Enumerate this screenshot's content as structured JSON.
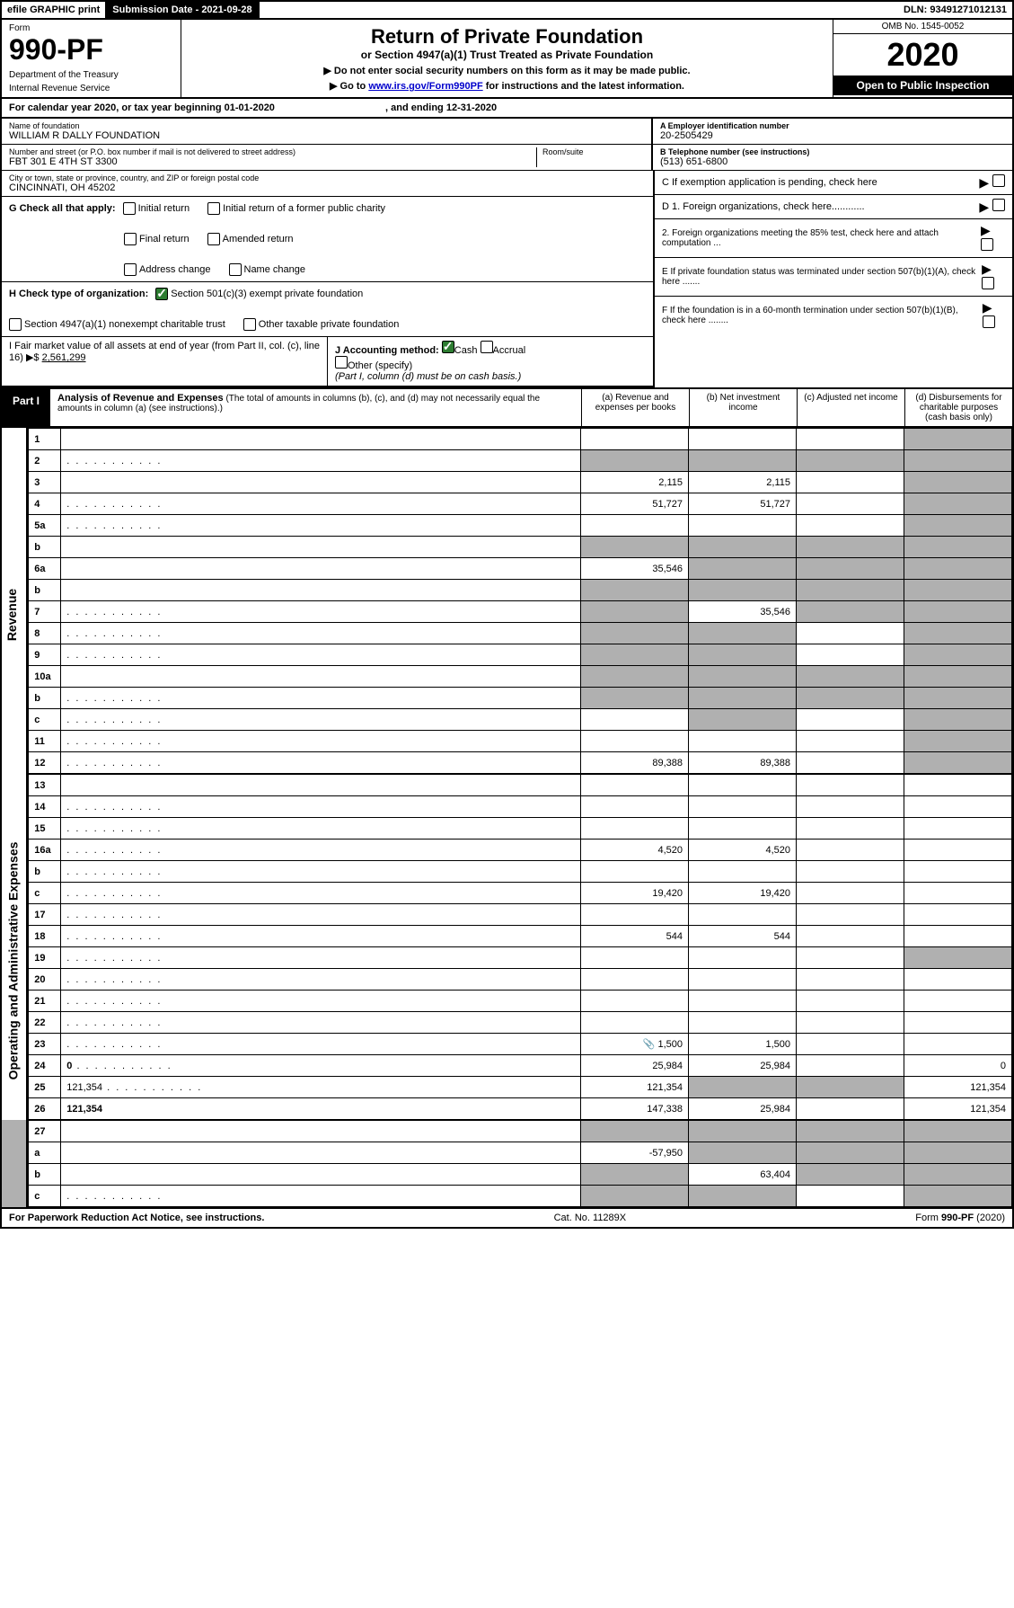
{
  "topbar": {
    "efile": "efile GRAPHIC print",
    "subdate_label": "Submission Date - 2021-09-28",
    "dln": "DLN: 93491271012131"
  },
  "header": {
    "form_word": "Form",
    "form_num": "990-PF",
    "dept": "Department of the Treasury",
    "irs": "Internal Revenue Service",
    "title": "Return of Private Foundation",
    "subtitle": "or Section 4947(a)(1) Trust Treated as Private Foundation",
    "note1": "▶ Do not enter social security numbers on this form as it may be made public.",
    "note2_pre": "▶ Go to ",
    "note2_link": "www.irs.gov/Form990PF",
    "note2_post": " for instructions and the latest information.",
    "omb": "OMB No. 1545-0052",
    "year": "2020",
    "open": "Open to Public Inspection"
  },
  "calendar": {
    "text_pre": "For calendar year 2020, or tax year beginning ",
    "begin": "01-01-2020",
    "mid": " , and ending ",
    "end": "12-31-2020"
  },
  "name_block": {
    "label": "Name of foundation",
    "value": "WILLIAM R DALLY FOUNDATION"
  },
  "ein_block": {
    "label": "A Employer identification number",
    "value": "20-2505429"
  },
  "addr_block": {
    "label": "Number and street (or P.O. box number if mail is not delivered to street address)",
    "room_label": "Room/suite",
    "value": "FBT 301 E 4TH ST 3300"
  },
  "phone_block": {
    "label": "B Telephone number (see instructions)",
    "value": "(513) 651-6800"
  },
  "city_block": {
    "label": "City or town, state or province, country, and ZIP or foreign postal code",
    "value": "CINCINNATI, OH  45202"
  },
  "c_block": "C If exemption application is pending, check here",
  "g_block": {
    "label": "G Check all that apply:",
    "opts": [
      "Initial return",
      "Initial return of a former public charity",
      "Final return",
      "Amended return",
      "Address change",
      "Name change"
    ]
  },
  "d_block": {
    "d1": "D 1. Foreign organizations, check here............",
    "d2": "2. Foreign organizations meeting the 85% test, check here and attach computation ..."
  },
  "h_block": {
    "label": "H Check type of organization:",
    "opt1": "Section 501(c)(3) exempt private foundation",
    "opt2": "Section 4947(a)(1) nonexempt charitable trust",
    "opt3": "Other taxable private foundation"
  },
  "e_block": "E If private foundation status was terminated under section 507(b)(1)(A), check here .......",
  "i_block": {
    "label": "I Fair market value of all assets at end of year (from Part II, col. (c), line 16) ▶$ ",
    "value": "2,561,299"
  },
  "j_block": {
    "label": "J Accounting method:",
    "cash": "Cash",
    "accrual": "Accrual",
    "other": "Other (specify)",
    "note": "(Part I, column (d) must be on cash basis.)"
  },
  "f_block": "F If the foundation is in a 60-month termination under section 507(b)(1)(B), check here ........",
  "part1": {
    "label": "Part I",
    "title": "Analysis of Revenue and Expenses",
    "note": "(The total of amounts in columns (b), (c), and (d) may not necessarily equal the amounts in column (a) (see instructions).)",
    "cols": {
      "a": "(a)   Revenue and expenses per books",
      "b": "(b)  Net investment income",
      "c": "(c)  Adjusted net income",
      "d": "(d)  Disbursements for charitable purposes (cash basis only)"
    }
  },
  "side_labels": {
    "revenue": "Revenue",
    "expenses": "Operating and Administrative Expenses"
  },
  "rows": [
    {
      "n": "1",
      "d": "",
      "a": "",
      "b": "",
      "c": "",
      "gray_d": true
    },
    {
      "n": "2",
      "d": "",
      "dotted": true,
      "a": "",
      "b": "",
      "c": "",
      "gray_a": true,
      "gray_b": true,
      "gray_c": true,
      "gray_d": true
    },
    {
      "n": "3",
      "d": "",
      "a": "2,115",
      "b": "2,115",
      "c": "",
      "gray_d": true
    },
    {
      "n": "4",
      "d": "",
      "dotted": true,
      "a": "51,727",
      "b": "51,727",
      "c": "",
      "gray_d": true
    },
    {
      "n": "5a",
      "d": "",
      "dotted": true,
      "a": "",
      "b": "",
      "c": "",
      "gray_d": true
    },
    {
      "n": "b",
      "d": "",
      "a": "",
      "b": "",
      "c": "",
      "gray_a": true,
      "gray_b": true,
      "gray_c": true,
      "gray_d": true
    },
    {
      "n": "6a",
      "d": "",
      "a": "35,546",
      "b": "",
      "c": "",
      "gray_b": true,
      "gray_c": true,
      "gray_d": true
    },
    {
      "n": "b",
      "d": "",
      "a": "",
      "b": "",
      "c": "",
      "gray_a": true,
      "gray_b": true,
      "gray_c": true,
      "gray_d": true
    },
    {
      "n": "7",
      "d": "",
      "dotted": true,
      "a": "",
      "b": "35,546",
      "c": "",
      "gray_a": true,
      "gray_c": true,
      "gray_d": true
    },
    {
      "n": "8",
      "d": "",
      "dotted": true,
      "a": "",
      "b": "",
      "c": "",
      "gray_a": true,
      "gray_b": true,
      "gray_d": true
    },
    {
      "n": "9",
      "d": "",
      "dotted": true,
      "a": "",
      "b": "",
      "c": "",
      "gray_a": true,
      "gray_b": true,
      "gray_d": true
    },
    {
      "n": "10a",
      "d": "",
      "a": "",
      "b": "",
      "c": "",
      "gray_a": true,
      "gray_b": true,
      "gray_c": true,
      "gray_d": true
    },
    {
      "n": "b",
      "d": "",
      "dotted": true,
      "a": "",
      "b": "",
      "c": "",
      "gray_a": true,
      "gray_b": true,
      "gray_c": true,
      "gray_d": true
    },
    {
      "n": "c",
      "d": "",
      "dotted": true,
      "a": "",
      "b": "",
      "c": "",
      "gray_b": true,
      "gray_d": true
    },
    {
      "n": "11",
      "d": "",
      "dotted": true,
      "a": "",
      "b": "",
      "c": "",
      "gray_d": true
    },
    {
      "n": "12",
      "d": "",
      "dotted": true,
      "bold": true,
      "a": "89,388",
      "b": "89,388",
      "c": "",
      "gray_d": true
    }
  ],
  "exp_rows": [
    {
      "n": "13",
      "d": "",
      "a": "",
      "b": "",
      "c": ""
    },
    {
      "n": "14",
      "d": "",
      "dotted": true,
      "a": "",
      "b": "",
      "c": ""
    },
    {
      "n": "15",
      "d": "",
      "dotted": true,
      "a": "",
      "b": "",
      "c": ""
    },
    {
      "n": "16a",
      "d": "",
      "dotted": true,
      "a": "4,520",
      "b": "4,520",
      "c": ""
    },
    {
      "n": "b",
      "d": "",
      "dotted": true,
      "a": "",
      "b": "",
      "c": ""
    },
    {
      "n": "c",
      "d": "",
      "dotted": true,
      "a": "19,420",
      "b": "19,420",
      "c": ""
    },
    {
      "n": "17",
      "d": "",
      "dotted": true,
      "a": "",
      "b": "",
      "c": ""
    },
    {
      "n": "18",
      "d": "",
      "dotted": true,
      "a": "544",
      "b": "544",
      "c": ""
    },
    {
      "n": "19",
      "d": "",
      "dotted": true,
      "a": "",
      "b": "",
      "c": "",
      "gray_d": true
    },
    {
      "n": "20",
      "d": "",
      "dotted": true,
      "a": "",
      "b": "",
      "c": ""
    },
    {
      "n": "21",
      "d": "",
      "dotted": true,
      "a": "",
      "b": "",
      "c": ""
    },
    {
      "n": "22",
      "d": "",
      "dotted": true,
      "a": "",
      "b": "",
      "c": ""
    },
    {
      "n": "23",
      "d": "",
      "dotted": true,
      "a": "1,500",
      "b": "1,500",
      "c": "",
      "icon_a": true
    },
    {
      "n": "24",
      "d": "0",
      "dotted": true,
      "bold": true,
      "a": "25,984",
      "b": "25,984",
      "c": ""
    },
    {
      "n": "25",
      "d": "121,354",
      "dotted": true,
      "a": "121,354",
      "b": "",
      "c": "",
      "gray_b": true,
      "gray_c": true
    },
    {
      "n": "26",
      "d": "121,354",
      "bold": true,
      "a": "147,338",
      "b": "25,984",
      "c": ""
    }
  ],
  "bottom_rows": [
    {
      "n": "27",
      "d": "",
      "a": "",
      "b": "",
      "c": "",
      "gray_a": true,
      "gray_b": true,
      "gray_c": true,
      "gray_d": true
    },
    {
      "n": "a",
      "d": "",
      "bold": true,
      "a": "-57,950",
      "b": "",
      "c": "",
      "gray_b": true,
      "gray_c": true,
      "gray_d": true
    },
    {
      "n": "b",
      "d": "",
      "bold": true,
      "a": "",
      "b": "63,404",
      "c": "",
      "gray_a": true,
      "gray_c": true,
      "gray_d": true
    },
    {
      "n": "c",
      "d": "",
      "dotted": true,
      "bold": true,
      "a": "",
      "b": "",
      "c": "",
      "gray_a": true,
      "gray_b": true,
      "gray_d": true
    }
  ],
  "footer": {
    "left": "For Paperwork Reduction Act Notice, see instructions.",
    "mid": "Cat. No. 11289X",
    "right": "Form 990-PF (2020)"
  }
}
